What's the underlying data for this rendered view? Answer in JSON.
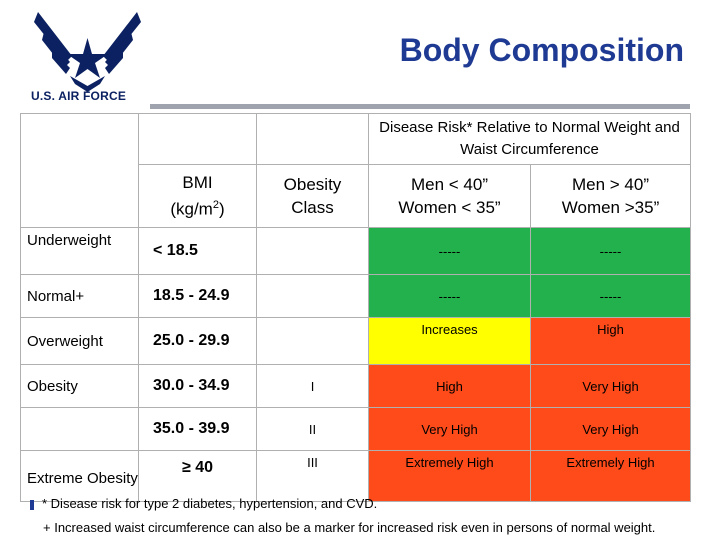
{
  "header": {
    "title": "Body Composition",
    "logo_text": "U.S. AIR FORCE"
  },
  "table": {
    "group_header": "Disease Risk* Relative to Normal Weight and Waist Circumference",
    "col_bmi_line1": "BMI",
    "col_bmi_line2": "(kg/m",
    "col_bmi_sup": "2",
    "col_bmi_close": ")",
    "col_class_line1": "Obesity",
    "col_class_line2": "Class",
    "col_men_low": "Men  < 40”",
    "col_women_low": "Women < 35”",
    "col_men_high": "Men > 40”",
    "col_women_high": "Women >35”",
    "rows": [
      {
        "label": "Underweight",
        "bmi": "< 18.5",
        "class": "",
        "risk_low": "-----",
        "risk_high": "-----"
      },
      {
        "label": "Normal+",
        "bmi": "18.5 - 24.9",
        "class": "",
        "risk_low": "-----",
        "risk_high": "-----"
      },
      {
        "label": "Overweight",
        "bmi": "25.0 - 29.9",
        "class": "",
        "risk_low": "Increases",
        "risk_high": "High"
      },
      {
        "label": "Obesity",
        "bmi": "30.0 - 34.9",
        "class": "I",
        "risk_low": "High",
        "risk_high": "Very High"
      },
      {
        "label": "",
        "bmi": "35.0 - 39.9",
        "class": "II",
        "risk_low": "Very High",
        "risk_high": "Very High"
      },
      {
        "label": "Extreme Obesity",
        "bmi": "≥ 40",
        "class": "III",
        "risk_low": "Extremely High",
        "risk_high": "Extremely High"
      }
    ]
  },
  "footnotes": {
    "note1": "* Disease risk for type 2 diabetes, hypertension, and CVD.",
    "note2": "+ Increased waist circumference can also be a marker for increased risk even in persons of normal weight."
  },
  "colors": {
    "green": "#22b14c",
    "yellow": "#ffff00",
    "red": "#ff4a1a",
    "title": "#1f3a93"
  }
}
